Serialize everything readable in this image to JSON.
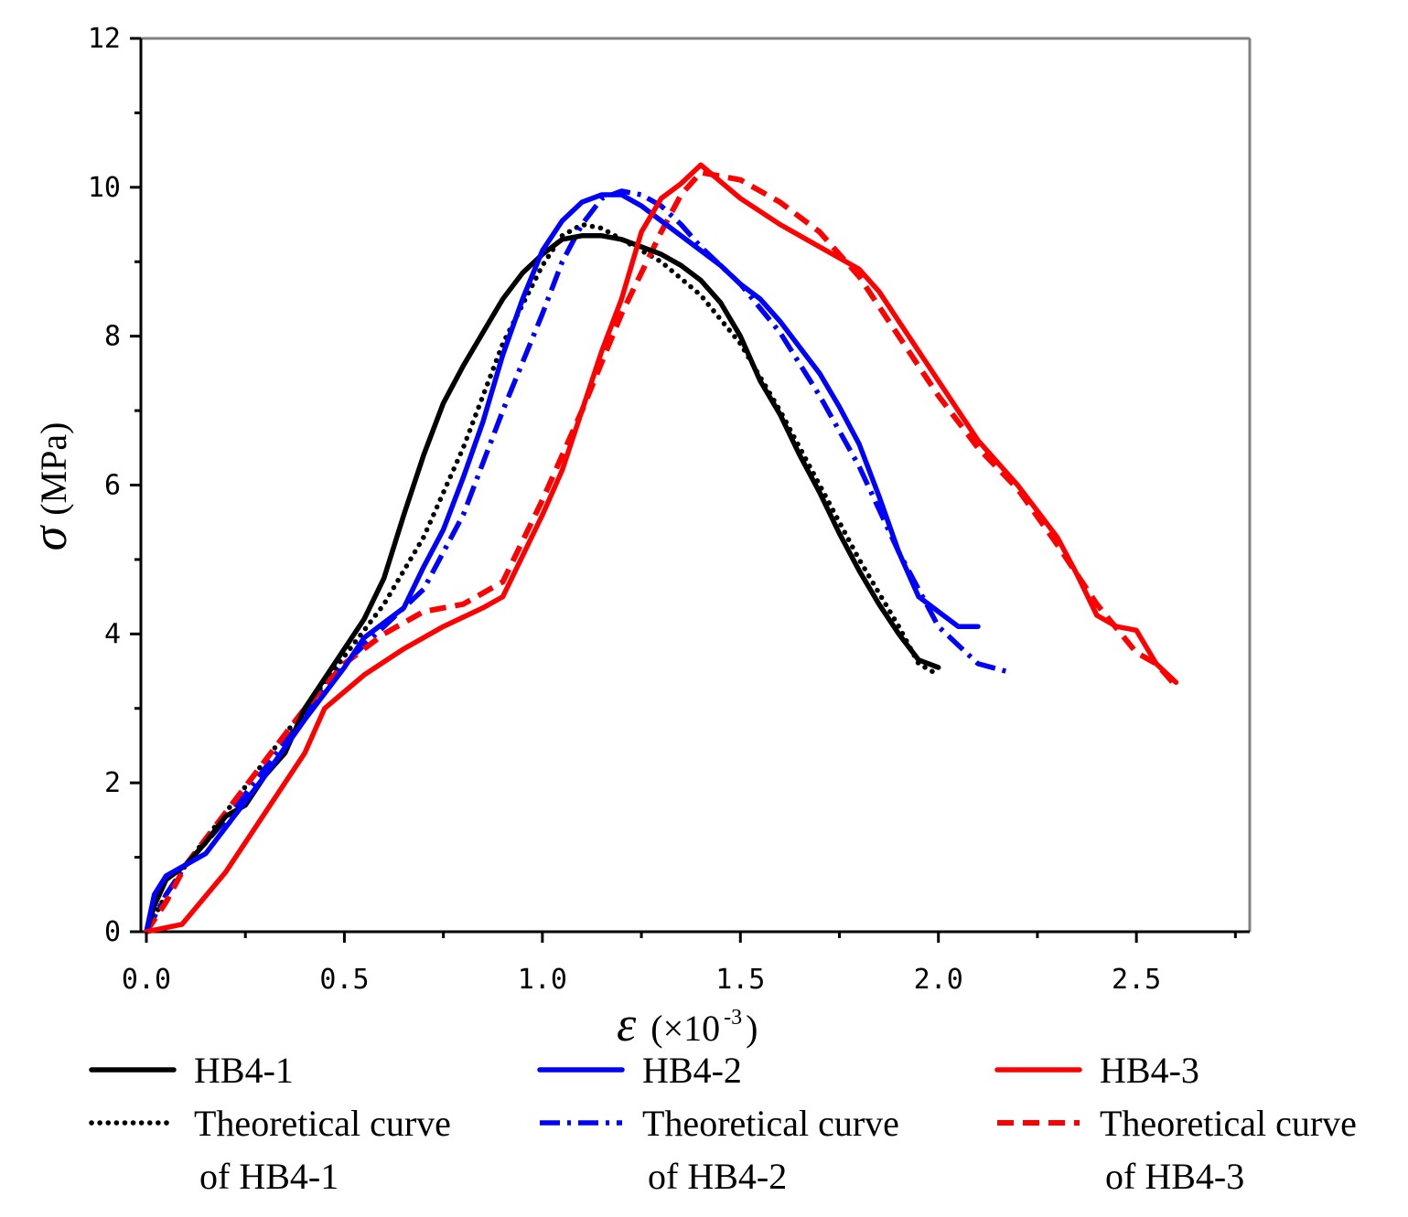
{
  "chart_data": {
    "type": "line",
    "title": "",
    "xlabel": {
      "symbol": "ε",
      "unit": "(×10",
      "exp": "-3",
      "close": ")"
    },
    "ylabel": {
      "symbol": "σ",
      "unit": "(MPa)"
    },
    "xlim": [
      0,
      2.8
    ],
    "ylim": [
      0,
      12
    ],
    "x_ticks": [
      {
        "v": 0.0,
        "label": "0.0"
      },
      {
        "v": 0.5,
        "label": "0.5"
      },
      {
        "v": 1.0,
        "label": "1.0"
      },
      {
        "v": 1.5,
        "label": "1.5"
      },
      {
        "v": 2.0,
        "label": "2.0"
      },
      {
        "v": 2.5,
        "label": "2.5"
      }
    ],
    "y_ticks": [
      {
        "v": 0,
        "label": "0"
      },
      {
        "v": 2,
        "label": "2"
      },
      {
        "v": 4,
        "label": "4"
      },
      {
        "v": 6,
        "label": "6"
      },
      {
        "v": 8,
        "label": "8"
      },
      {
        "v": 10,
        "label": "10"
      },
      {
        "v": 12,
        "label": "12"
      }
    ],
    "grid": false,
    "legend_position": "bottom",
    "series": [
      {
        "id": "hb4-1",
        "name": "HB4-1",
        "color": "#000000",
        "style": "solid",
        "points": [
          [
            0,
            0
          ],
          [
            0.02,
            0.35
          ],
          [
            0.05,
            0.7
          ],
          [
            0.1,
            0.9
          ],
          [
            0.15,
            1.2
          ],
          [
            0.2,
            1.55
          ],
          [
            0.25,
            1.7
          ],
          [
            0.3,
            2.1
          ],
          [
            0.35,
            2.4
          ],
          [
            0.4,
            3.0
          ],
          [
            0.45,
            3.4
          ],
          [
            0.5,
            3.8
          ],
          [
            0.55,
            4.2
          ],
          [
            0.6,
            4.75
          ],
          [
            0.65,
            5.6
          ],
          [
            0.7,
            6.4
          ],
          [
            0.75,
            7.1
          ],
          [
            0.8,
            7.6
          ],
          [
            0.85,
            8.05
          ],
          [
            0.9,
            8.5
          ],
          [
            0.95,
            8.85
          ],
          [
            1.0,
            9.1
          ],
          [
            1.05,
            9.3
          ],
          [
            1.1,
            9.35
          ],
          [
            1.15,
            9.35
          ],
          [
            1.2,
            9.3
          ],
          [
            1.25,
            9.2
          ],
          [
            1.3,
            9.1
          ],
          [
            1.35,
            8.95
          ],
          [
            1.4,
            8.75
          ],
          [
            1.45,
            8.45
          ],
          [
            1.5,
            8.0
          ],
          [
            1.55,
            7.4
          ],
          [
            1.6,
            6.95
          ],
          [
            1.65,
            6.4
          ],
          [
            1.7,
            5.9
          ],
          [
            1.75,
            5.35
          ],
          [
            1.8,
            4.85
          ],
          [
            1.85,
            4.4
          ],
          [
            1.9,
            4.0
          ],
          [
            1.95,
            3.65
          ],
          [
            2.0,
            3.55
          ]
        ]
      },
      {
        "id": "theory-hb4-1",
        "name": "Theoretical curve of HB4-1",
        "color": "#000000",
        "style": "dotted",
        "points": [
          [
            0,
            0
          ],
          [
            0.05,
            0.5
          ],
          [
            0.1,
            0.9
          ],
          [
            0.2,
            1.6
          ],
          [
            0.3,
            2.3
          ],
          [
            0.4,
            3.0
          ],
          [
            0.5,
            3.7
          ],
          [
            0.6,
            4.4
          ],
          [
            0.7,
            5.3
          ],
          [
            0.8,
            6.5
          ],
          [
            0.9,
            7.9
          ],
          [
            1.0,
            8.95
          ],
          [
            1.05,
            9.35
          ],
          [
            1.1,
            9.5
          ],
          [
            1.15,
            9.45
          ],
          [
            1.2,
            9.3
          ],
          [
            1.3,
            9.0
          ],
          [
            1.4,
            8.55
          ],
          [
            1.5,
            7.9
          ],
          [
            1.6,
            7.0
          ],
          [
            1.7,
            6.0
          ],
          [
            1.8,
            5.0
          ],
          [
            1.9,
            4.1
          ],
          [
            1.95,
            3.6
          ],
          [
            2.0,
            3.45
          ]
        ]
      },
      {
        "id": "hb4-2",
        "name": "HB4-2",
        "color": "#0000ff",
        "style": "solid",
        "points": [
          [
            0,
            0
          ],
          [
            0.02,
            0.5
          ],
          [
            0.05,
            0.75
          ],
          [
            0.1,
            0.9
          ],
          [
            0.15,
            1.05
          ],
          [
            0.2,
            1.4
          ],
          [
            0.3,
            2.1
          ],
          [
            0.4,
            2.85
          ],
          [
            0.5,
            3.55
          ],
          [
            0.55,
            3.95
          ],
          [
            0.6,
            4.15
          ],
          [
            0.65,
            4.35
          ],
          [
            0.7,
            4.9
          ],
          [
            0.75,
            5.4
          ],
          [
            0.8,
            6.1
          ],
          [
            0.85,
            6.85
          ],
          [
            0.9,
            7.75
          ],
          [
            0.95,
            8.5
          ],
          [
            1.0,
            9.15
          ],
          [
            1.05,
            9.55
          ],
          [
            1.1,
            9.8
          ],
          [
            1.15,
            9.9
          ],
          [
            1.2,
            9.9
          ],
          [
            1.25,
            9.75
          ],
          [
            1.3,
            9.55
          ],
          [
            1.35,
            9.35
          ],
          [
            1.4,
            9.15
          ],
          [
            1.45,
            8.95
          ],
          [
            1.5,
            8.7
          ],
          [
            1.55,
            8.5
          ],
          [
            1.6,
            8.2
          ],
          [
            1.65,
            7.85
          ],
          [
            1.7,
            7.5
          ],
          [
            1.75,
            7.05
          ],
          [
            1.8,
            6.55
          ],
          [
            1.85,
            5.85
          ],
          [
            1.9,
            5.1
          ],
          [
            1.95,
            4.5
          ],
          [
            2.0,
            4.3
          ],
          [
            2.05,
            4.1
          ],
          [
            2.1,
            4.1
          ]
        ]
      },
      {
        "id": "theory-hb4-2",
        "name": "Theoretical curve of HB4-2",
        "color": "#0000ff",
        "style": "dashdot",
        "points": [
          [
            0,
            0
          ],
          [
            0.05,
            0.5
          ],
          [
            0.1,
            0.9
          ],
          [
            0.2,
            1.5
          ],
          [
            0.3,
            2.2
          ],
          [
            0.4,
            2.9
          ],
          [
            0.5,
            3.6
          ],
          [
            0.6,
            4.1
          ],
          [
            0.7,
            4.6
          ],
          [
            0.8,
            5.6
          ],
          [
            0.9,
            7.0
          ],
          [
            1.0,
            8.3
          ],
          [
            1.05,
            9.0
          ],
          [
            1.1,
            9.5
          ],
          [
            1.15,
            9.85
          ],
          [
            1.2,
            9.95
          ],
          [
            1.25,
            9.9
          ],
          [
            1.3,
            9.75
          ],
          [
            1.35,
            9.5
          ],
          [
            1.4,
            9.2
          ],
          [
            1.5,
            8.7
          ],
          [
            1.6,
            8.05
          ],
          [
            1.7,
            7.2
          ],
          [
            1.8,
            6.25
          ],
          [
            1.9,
            5.1
          ],
          [
            2.0,
            4.1
          ],
          [
            2.1,
            3.6
          ],
          [
            2.17,
            3.5
          ]
        ]
      },
      {
        "id": "hb4-3",
        "name": "HB4-3",
        "color": "#ff0000",
        "style": "solid",
        "points": [
          [
            0,
            0
          ],
          [
            0.09,
            0.1
          ],
          [
            0.2,
            0.8
          ],
          [
            0.3,
            1.6
          ],
          [
            0.4,
            2.4
          ],
          [
            0.45,
            3.0
          ],
          [
            0.55,
            3.45
          ],
          [
            0.65,
            3.8
          ],
          [
            0.75,
            4.1
          ],
          [
            0.85,
            4.35
          ],
          [
            0.9,
            4.5
          ],
          [
            1.0,
            5.6
          ],
          [
            1.05,
            6.2
          ],
          [
            1.1,
            7.0
          ],
          [
            1.15,
            7.8
          ],
          [
            1.2,
            8.5
          ],
          [
            1.25,
            9.4
          ],
          [
            1.3,
            9.85
          ],
          [
            1.35,
            10.05
          ],
          [
            1.4,
            10.3
          ],
          [
            1.5,
            9.85
          ],
          [
            1.6,
            9.5
          ],
          [
            1.7,
            9.2
          ],
          [
            1.8,
            8.9
          ],
          [
            1.85,
            8.6
          ],
          [
            1.9,
            8.2
          ],
          [
            2.0,
            7.4
          ],
          [
            2.1,
            6.6
          ],
          [
            2.2,
            6.0
          ],
          [
            2.3,
            5.3
          ],
          [
            2.35,
            4.8
          ],
          [
            2.4,
            4.25
          ],
          [
            2.45,
            4.1
          ],
          [
            2.5,
            4.05
          ],
          [
            2.55,
            3.6
          ],
          [
            2.6,
            3.35
          ]
        ]
      },
      {
        "id": "theory-hb4-3",
        "name": "Theoretical curve of HB4-3",
        "color": "#ff0000",
        "style": "dashed",
        "points": [
          [
            0,
            0
          ],
          [
            0.05,
            0.4
          ],
          [
            0.1,
            0.9
          ],
          [
            0.2,
            1.6
          ],
          [
            0.3,
            2.3
          ],
          [
            0.4,
            3.0
          ],
          [
            0.5,
            3.6
          ],
          [
            0.6,
            4.0
          ],
          [
            0.7,
            4.3
          ],
          [
            0.8,
            4.4
          ],
          [
            0.9,
            4.7
          ],
          [
            1.0,
            5.8
          ],
          [
            1.1,
            7.0
          ],
          [
            1.2,
            8.3
          ],
          [
            1.3,
            9.4
          ],
          [
            1.35,
            9.9
          ],
          [
            1.4,
            10.2
          ],
          [
            1.5,
            10.1
          ],
          [
            1.6,
            9.8
          ],
          [
            1.7,
            9.4
          ],
          [
            1.8,
            8.8
          ],
          [
            1.9,
            8.0
          ],
          [
            2.0,
            7.2
          ],
          [
            2.1,
            6.5
          ],
          [
            2.2,
            5.95
          ],
          [
            2.3,
            5.2
          ],
          [
            2.4,
            4.4
          ],
          [
            2.5,
            3.75
          ],
          [
            2.55,
            3.6
          ],
          [
            2.6,
            3.3
          ]
        ]
      }
    ]
  },
  "legend": [
    {
      "id": "hb4-1",
      "label": "HB4-1"
    },
    {
      "id": "hb4-2",
      "label": "HB4-2"
    },
    {
      "id": "hb4-3",
      "label": "HB4-3"
    },
    {
      "id": "theory-hb4-1",
      "label": "Theoretical curve",
      "label2": "of HB4-1"
    },
    {
      "id": "theory-hb4-2",
      "label": "Theoretical curve",
      "label2": "of HB4-2"
    },
    {
      "id": "theory-hb4-3",
      "label": "Theoretical curve",
      "label2": "of HB4-3"
    }
  ]
}
